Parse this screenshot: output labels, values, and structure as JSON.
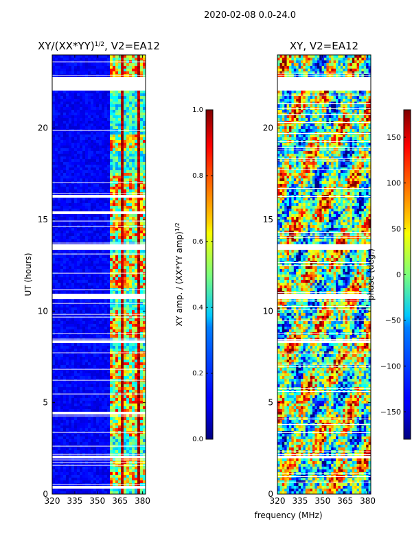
{
  "suptitle": "2020-02-08 0.0-24.0",
  "colormap": "jet",
  "shared_xlabel": "frequency (MHz)",
  "chart_data": [
    {
      "type": "heatmap",
      "title_main": "XY/(XX*YY)",
      "title_sup": "1/2",
      "title_suffix": ", V2=EA12",
      "xlabel": "",
      "ylabel": "UT (hours)",
      "xlim": [
        320,
        382
      ],
      "ylim": [
        0,
        24
      ],
      "xticks": [
        320,
        335,
        350,
        365,
        380
      ],
      "yticks": [
        0,
        5,
        10,
        15,
        20
      ],
      "hot_band_start_mhz": 359,
      "hot_segments_hours": [
        [
          0.3,
          2.0
        ],
        [
          3.2,
          7.8
        ],
        [
          8.6,
          10.0
        ],
        [
          11.2,
          13.0
        ],
        [
          14.0,
          17.5
        ],
        [
          18.8,
          19.6
        ],
        [
          22.5,
          24.0
        ]
      ],
      "gaps_hours": [
        [
          22.0,
          22.8
        ],
        [
          10.7,
          10.95
        ],
        [
          13.4,
          13.6
        ],
        [
          15.3,
          15.4
        ],
        [
          8.2,
          8.4
        ],
        [
          7.9,
          8.0
        ],
        [
          2.0,
          2.1
        ],
        [
          0.35,
          0.45
        ],
        [
          4.4,
          4.5
        ],
        [
          16.2,
          16.3
        ]
      ],
      "colorbar": {
        "label_main": "XY amp. / (XX*YY amp)",
        "label_sup": "1/2",
        "range": [
          0.0,
          1.0
        ],
        "ticks": [
          "0.0",
          "0.2",
          "0.4",
          "0.6",
          "0.8",
          "1.0"
        ]
      }
    },
    {
      "type": "heatmap",
      "title_main": "XY, V2=EA12",
      "xlabel": "",
      "ylabel": "",
      "xlim": [
        320,
        382
      ],
      "ylim": [
        0,
        24
      ],
      "xticks": [
        320,
        335,
        350,
        365,
        380
      ],
      "yticks": [
        0,
        5,
        10,
        15,
        20
      ],
      "gaps_hours": [
        [
          22.0,
          22.8
        ],
        [
          10.7,
          10.95
        ],
        [
          13.4,
          13.6
        ],
        [
          8.2,
          8.4
        ],
        [
          7.9,
          8.0
        ],
        [
          2.0,
          2.1
        ]
      ],
      "colorbar": {
        "label": "phase (deg.)",
        "range": [
          -180,
          180
        ],
        "ticks": [
          "150",
          "100",
          "50",
          "0",
          "−50",
          "−100",
          "−150"
        ],
        "tick_values": [
          150,
          100,
          50,
          0,
          -50,
          -100,
          -150
        ]
      }
    }
  ]
}
